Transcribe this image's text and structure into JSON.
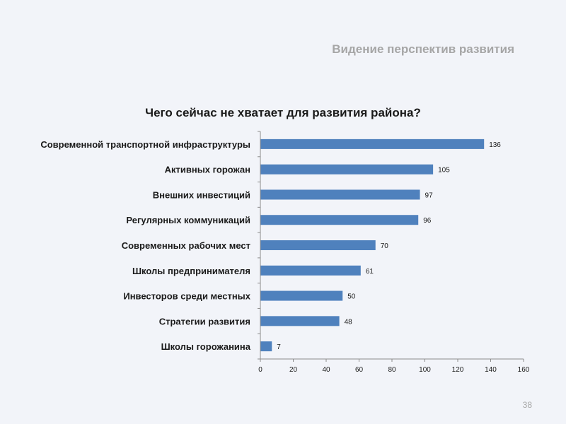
{
  "slide": {
    "header": "Видение перспектив развития",
    "page_number": "38"
  },
  "chart_data": {
    "type": "bar",
    "orientation": "horizontal",
    "title": "Чего сейчас не хватает для развития района?",
    "xlabel": "",
    "ylabel": "",
    "categories": [
      "Современной транспортной инфраструктуры",
      "Активных горожан",
      "Внешних инвестиций",
      "Регулярных коммуникаций",
      "Современных рабочих мест",
      "Школы предпринимателя",
      "Инвесторов среди местных",
      "Стратегии развития",
      "Школы горожанина"
    ],
    "values": [
      136,
      105,
      97,
      96,
      70,
      61,
      50,
      48,
      7
    ],
    "xlim": [
      0,
      160
    ],
    "xticks": [
      0,
      20,
      40,
      60,
      80,
      100,
      120,
      140,
      160
    ],
    "grid": false,
    "legend": "none",
    "bar_color": "#4f81bd",
    "axis_color": "#8c8c8c"
  }
}
